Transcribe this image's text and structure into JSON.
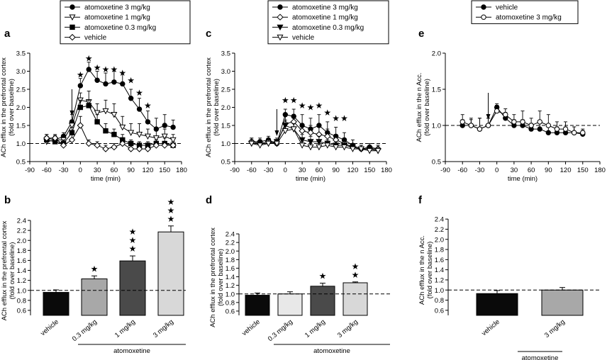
{
  "chart_data": [
    {
      "panel": "a",
      "type": "line",
      "xlabel": "time (min)",
      "ylabel": [
        "ACh efflux in the prefrontal cortex",
        "(fold over baseline)"
      ],
      "xlim": [
        -90,
        180
      ],
      "xticks": [
        -90,
        -60,
        -30,
        0,
        30,
        60,
        90,
        120,
        150,
        180
      ],
      "ylim": [
        0.5,
        3.5
      ],
      "yticks": [
        0.5,
        1.0,
        1.5,
        2.0,
        2.5,
        3.0,
        3.5
      ],
      "ytick_labels": [
        "0.5",
        "1.0",
        "1.5",
        "2.0",
        "2.5",
        "3.0",
        "3.5"
      ],
      "baseline": 1.0,
      "injection_time": -15,
      "x": [
        -60,
        -45,
        -30,
        -15,
        0,
        15,
        30,
        45,
        60,
        75,
        90,
        105,
        120,
        135,
        150,
        165
      ],
      "series": [
        {
          "name": "atomoxetine 3 mg/kg",
          "marker": "filled-circle",
          "values": [
            1.15,
            1.1,
            1.2,
            1.6,
            2.6,
            3.05,
            2.75,
            2.65,
            2.7,
            2.65,
            2.25,
            1.95,
            1.6,
            1.4,
            1.5,
            1.45
          ],
          "errors": [
            0.1,
            0.12,
            0.1,
            0.2,
            0.2,
            0.2,
            0.25,
            0.3,
            0.3,
            0.3,
            0.25,
            0.3,
            0.3,
            0.3,
            0.3,
            0.2
          ]
        },
        {
          "name": "atomoxetine 1 mg/kg",
          "marker": "open-triangle-down",
          "values": [
            1.05,
            1.1,
            1.1,
            1.5,
            2.2,
            2.15,
            1.85,
            1.9,
            1.8,
            1.45,
            1.3,
            1.25,
            1.2,
            1.15,
            1.2,
            1.1
          ],
          "errors": [
            0.1,
            0.1,
            0.1,
            0.15,
            0.2,
            0.3,
            0.25,
            0.3,
            0.3,
            0.3,
            0.25,
            0.3,
            0.2,
            0.2,
            0.2,
            0.15
          ]
        },
        {
          "name": "atomoxetine 0.3 mg/kg",
          "marker": "filled-square",
          "values": [
            1.1,
            1.05,
            1.0,
            1.3,
            2.0,
            2.05,
            1.6,
            1.35,
            1.25,
            1.1,
            1.0,
            0.95,
            0.95,
            1.0,
            1.0,
            0.95
          ],
          "errors": [
            0.1,
            0.1,
            0.1,
            0.15,
            0.2,
            0.15,
            0.2,
            0.2,
            0.15,
            0.15,
            0.1,
            0.1,
            0.1,
            0.1,
            0.15,
            0.1
          ]
        },
        {
          "name": "vehicle",
          "marker": "open-diamond",
          "values": [
            1.15,
            1.15,
            0.95,
            1.1,
            1.5,
            1.0,
            0.95,
            0.85,
            0.9,
            1.0,
            0.85,
            0.85,
            0.85,
            0.95,
            0.95,
            0.95
          ],
          "errors": [
            0.1,
            0.1,
            0.1,
            0.15,
            0.25,
            0.1,
            0.1,
            0.1,
            0.1,
            0.15,
            0.1,
            0.1,
            0.1,
            0.1,
            0.1,
            0.1
          ]
        }
      ],
      "significance": [
        {
          "x": 0,
          "y": 2.9
        },
        {
          "x": 15,
          "y": 3.35
        },
        {
          "x": 30,
          "y": 3.1
        },
        {
          "x": 45,
          "y": 3.05
        },
        {
          "x": 60,
          "y": 3.05
        },
        {
          "x": 75,
          "y": 2.95
        },
        {
          "x": 90,
          "y": 2.75
        },
        {
          "x": 105,
          "y": 2.4
        },
        {
          "x": 120,
          "y": 2.05
        }
      ]
    },
    {
      "panel": "c",
      "type": "line",
      "xlabel": "time (min)",
      "ylabel": [
        "ACh efflux in the prefrontal cortex",
        "(fold over baseline)"
      ],
      "xlim": [
        -90,
        180
      ],
      "xticks": [
        -90,
        -60,
        -30,
        0,
        30,
        60,
        90,
        120,
        150,
        180
      ],
      "ylim": [
        0.5,
        3.5
      ],
      "yticks": [
        0.5,
        1.0,
        1.5,
        2.0,
        2.5,
        3.0,
        3.5
      ],
      "ytick_labels": [
        "0.5",
        "1.0",
        "1.5",
        "2.0",
        "2.5",
        "3.0",
        "3.5"
      ],
      "baseline": 1.0,
      "injection_time": -15,
      "x": [
        -60,
        -45,
        -30,
        -15,
        0,
        15,
        30,
        45,
        60,
        75,
        90,
        105,
        120,
        135,
        150,
        165
      ],
      "series": [
        {
          "name": "atomoxetine 3 mg/kg",
          "marker": "filled-circle",
          "values": [
            1.05,
            1.05,
            1.1,
            1.0,
            1.8,
            1.75,
            1.5,
            1.4,
            1.5,
            1.3,
            1.2,
            1.1,
            0.95,
            0.85,
            0.9,
            0.85
          ],
          "errors": [
            0.1,
            0.1,
            0.1,
            0.1,
            0.15,
            0.2,
            0.3,
            0.3,
            0.3,
            0.3,
            0.25,
            0.2,
            0.15,
            0.1,
            0.1,
            0.1
          ]
        },
        {
          "name": "atomoxetine 1 mg/kg",
          "marker": "open-diamond",
          "values": [
            1.05,
            1.0,
            1.05,
            1.0,
            1.55,
            1.6,
            1.35,
            1.3,
            1.25,
            1.2,
            1.1,
            1.0,
            0.9,
            0.85,
            0.85,
            0.85
          ],
          "errors": [
            0.1,
            0.1,
            0.1,
            0.1,
            0.2,
            0.2,
            0.2,
            0.2,
            0.2,
            0.2,
            0.15,
            0.15,
            0.1,
            0.1,
            0.1,
            0.1
          ]
        },
        {
          "name": "atomoxetine 0.3 mg/kg",
          "marker": "filled-triangle-down",
          "values": [
            1.0,
            1.0,
            1.0,
            1.05,
            1.5,
            1.4,
            1.1,
            1.05,
            1.05,
            1.0,
            0.95,
            0.95,
            0.9,
            0.85,
            0.85,
            0.8
          ],
          "errors": [
            0.1,
            0.1,
            0.1,
            0.1,
            0.15,
            0.15,
            0.15,
            0.15,
            0.15,
            0.1,
            0.1,
            0.1,
            0.1,
            0.1,
            0.1,
            0.1
          ]
        },
        {
          "name": "vehicle",
          "marker": "open-triangle-down",
          "values": [
            1.0,
            0.95,
            1.0,
            1.0,
            1.35,
            1.4,
            0.95,
            0.9,
            0.9,
            0.95,
            0.9,
            0.9,
            0.85,
            0.85,
            0.8,
            0.8
          ],
          "errors": [
            0.1,
            0.1,
            0.1,
            0.1,
            0.15,
            0.15,
            0.1,
            0.1,
            0.1,
            0.1,
            0.1,
            0.1,
            0.1,
            0.1,
            0.1,
            0.1
          ]
        }
      ],
      "significance": [
        {
          "x": 0,
          "y": 2.2
        },
        {
          "x": 15,
          "y": 2.2
        },
        {
          "x": 30,
          "y": 2.05
        },
        {
          "x": 45,
          "y": 2.0
        },
        {
          "x": 60,
          "y": 2.05
        },
        {
          "x": 75,
          "y": 1.85
        },
        {
          "x": 90,
          "y": 1.7
        },
        {
          "x": 105,
          "y": 1.7
        }
      ]
    },
    {
      "panel": "e",
      "type": "line",
      "xlabel": "time (min)",
      "ylabel": [
        "ACh efflux in the n Acc.",
        "(fold over baseline)"
      ],
      "xlim": [
        -90,
        180
      ],
      "xticks": [
        -90,
        -60,
        -30,
        0,
        30,
        60,
        90,
        120,
        150,
        180
      ],
      "ylim": [
        0.5,
        2.0
      ],
      "yticks": [
        0.5,
        1.0,
        1.5,
        2.0
      ],
      "ytick_labels": [
        "0.5",
        "1.0",
        "1.5",
        "2.0"
      ],
      "baseline": 1.0,
      "injection_time": -15,
      "x": [
        -60,
        -45,
        -30,
        -15,
        0,
        15,
        30,
        45,
        60,
        75,
        90,
        105,
        120,
        135,
        150
      ],
      "series": [
        {
          "name": "vehicle",
          "marker": "filled-circle",
          "values": [
            1.0,
            1.0,
            0.95,
            1.0,
            1.25,
            1.1,
            1.0,
            1.0,
            0.95,
            0.95,
            0.9,
            0.9,
            0.9,
            0.9,
            0.88
          ],
          "errors": [
            0.08,
            0.08,
            0.15,
            0.1,
            0.05,
            0.08,
            0.08,
            0.08,
            0.08,
            0.08,
            0.08,
            0.08,
            0.08,
            0.08,
            0.05
          ]
        },
        {
          "name": "atomoxetine 3 mg/kg",
          "marker": "open-circle",
          "values": [
            1.05,
            1.0,
            0.95,
            1.0,
            1.2,
            1.15,
            1.05,
            1.05,
            1.0,
            1.05,
            1.0,
            0.95,
            0.95,
            0.9,
            0.9
          ],
          "errors": [
            0.1,
            0.1,
            0.15,
            0.1,
            0.08,
            0.08,
            0.1,
            0.15,
            0.1,
            0.15,
            0.15,
            0.1,
            0.1,
            0.08,
            0.05
          ]
        }
      ]
    },
    {
      "panel": "b",
      "type": "bar",
      "categories": [
        "vehicle",
        "0.3 mg/kg",
        "1 mg/kg",
        "3 mg/kg"
      ],
      "values": [
        0.96,
        1.23,
        1.59,
        2.17
      ],
      "errors": [
        0.05,
        0.06,
        0.1,
        0.12
      ],
      "colors": [
        "#0a0a0a",
        "#a8a8a8",
        "#4a4a4a",
        "#d8d8d8"
      ],
      "stars": [
        0,
        1,
        3,
        3
      ],
      "ylabel": [
        "ACh efflux in the prefrontal cortex",
        "(fold over baseline)"
      ],
      "ylim": [
        0.5,
        2.5
      ],
      "yticks": [
        0.6,
        0.8,
        1.0,
        1.2,
        1.4,
        1.6,
        1.8,
        2.0,
        2.2,
        2.4
      ],
      "ytick_labels": [
        "0.6",
        "0.8",
        "1.0",
        "1.2",
        "1.4",
        "1.6",
        "1.8",
        "2.0",
        "2.2",
        "2.4"
      ],
      "baseline": 1.0,
      "group_label": "atomoxetine",
      "group_from": 1
    },
    {
      "panel": "d",
      "type": "bar",
      "categories": [
        "vehicle",
        "0.3 mg/kg",
        "1 mg/kg",
        "3 mg/kg"
      ],
      "values": [
        0.97,
        1.0,
        1.18,
        1.26
      ],
      "errors": [
        0.05,
        0.05,
        0.07,
        0.02
      ],
      "colors": [
        "#0a0a0a",
        "#e8e8e8",
        "#4a4a4a",
        "#d8d8d8"
      ],
      "stars": [
        0,
        0,
        1,
        2
      ],
      "ylabel": [
        "ACh efflux in the prefrontal cortex",
        "(fold over baseline)"
      ],
      "ylim": [
        0.5,
        2.5
      ],
      "yticks": [
        0.6,
        0.8,
        1.0,
        1.2,
        1.4,
        1.6,
        1.8,
        2.0,
        2.2,
        2.4
      ],
      "ytick_labels": [
        "0.6",
        "0.8",
        "1.0",
        "1.2",
        "1.4",
        "1.6",
        "1.8",
        "2.0",
        "2.2",
        "2.4"
      ],
      "baseline": 1.0,
      "group_label": "atomoxetine",
      "group_from": 1
    },
    {
      "panel": "f",
      "type": "bar",
      "categories": [
        "vehicle",
        "3 mg/kg"
      ],
      "values": [
        0.93,
        1.0
      ],
      "errors": [
        0.06,
        0.05
      ],
      "colors": [
        "#0a0a0a",
        "#a8a8a8"
      ],
      "stars": [
        0,
        0
      ],
      "ylabel": [
        "ACh efflux in the n Acc.",
        "(fold over baseline)"
      ],
      "ylim": [
        0.5,
        2.5
      ],
      "yticks": [
        0.6,
        0.8,
        1.0,
        1.2,
        1.4,
        1.6,
        1.8,
        2.0,
        2.2,
        2.4
      ],
      "ytick_labels": [
        "0.6",
        "0.8",
        "1.0",
        "1.2",
        "1.4",
        "1.6",
        "1.8",
        "2.0",
        "2.2",
        "2.4"
      ],
      "baseline": 1.0,
      "group_label": "atomoxetine",
      "group_from": 1
    }
  ],
  "star_glyph": "★"
}
